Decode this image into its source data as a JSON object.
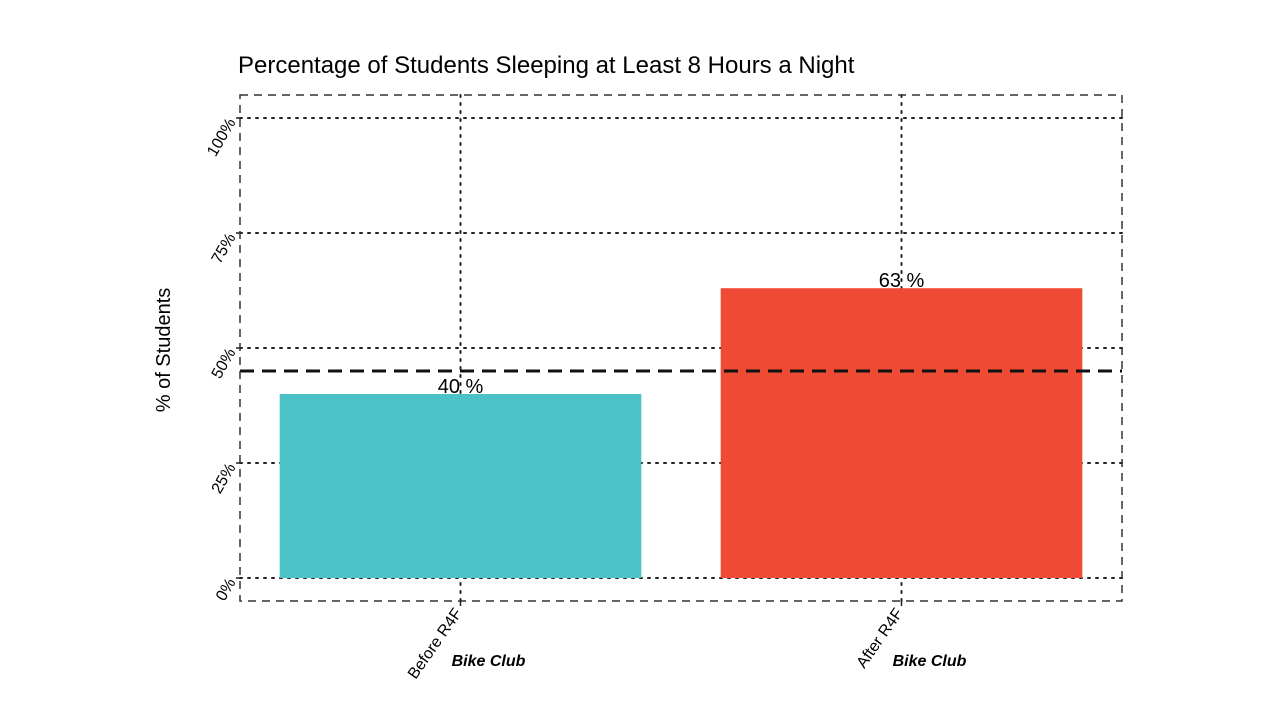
{
  "chart_data": {
    "type": "bar",
    "title": "Percentage of Students Sleeping at Least 8 Hours a Night",
    "ylabel": "% of Students",
    "xlabel": "",
    "categories": [
      "Before R4F",
      "After R4F"
    ],
    "sublabels": [
      "Bike Club",
      "Bike Club"
    ],
    "values": [
      40,
      63
    ],
    "data_labels": [
      "40 %",
      "63 %"
    ],
    "yticks": [
      0,
      25,
      50,
      75,
      100
    ],
    "ytick_labels": [
      "0%",
      "25%",
      "50%",
      "75%",
      "100%"
    ],
    "ylim": [
      -5,
      105
    ],
    "reference_line": 45,
    "grid": true,
    "colors": [
      "#4bc3c6",
      "#ef4a33"
    ]
  }
}
